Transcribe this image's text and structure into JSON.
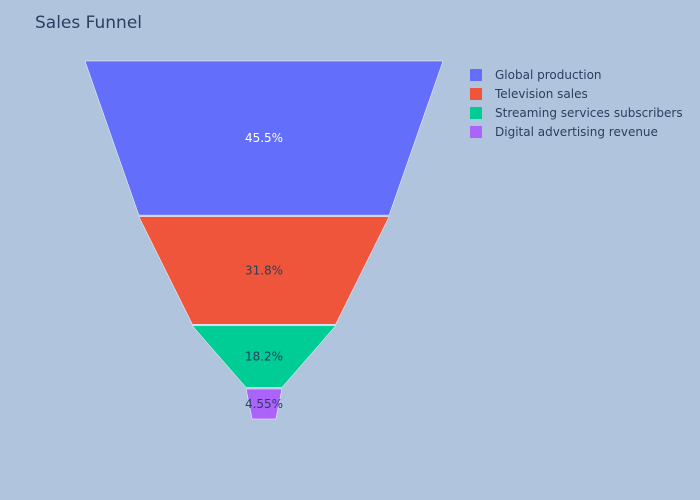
{
  "chart_data": {
    "type": "funnel",
    "title": "Sales Funnel",
    "legend_position": "top-right",
    "categories": [
      "Global production",
      "Television sales",
      "Streaming services subscribers",
      "Digital advertising revenue"
    ],
    "percentages": [
      45.5,
      31.8,
      18.2,
      4.55
    ],
    "labels": [
      "45.5%",
      "31.8%",
      "18.2%",
      "4.55%"
    ],
    "colors": [
      "#636efa",
      "#EF553B",
      "#00cc96",
      "#ab63fa"
    ],
    "label_colors": [
      "#ffffff",
      "#2a3f5f",
      "#2a3f5f",
      "#2a3f5f"
    ]
  }
}
